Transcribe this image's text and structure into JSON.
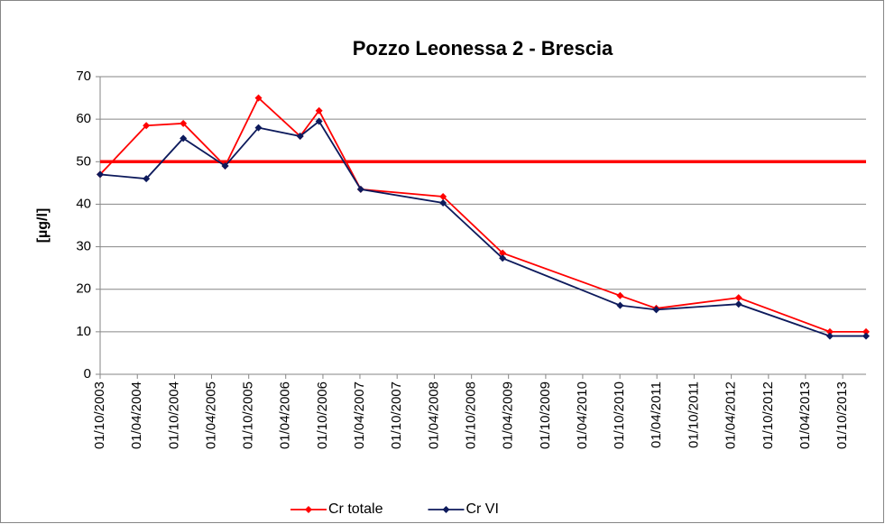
{
  "chart_data": {
    "type": "line",
    "title": "Pozzo Leonessa 2 - Brescia",
    "y_label": "[µg/l]",
    "x": [
      "2003-10-01",
      "2004-05-15",
      "2004-11-13",
      "2005-06-07",
      "2005-11-18",
      "2006-06-11",
      "2006-09-12",
      "2007-04-05",
      "2008-05-14",
      "2009-03-03",
      "2010-10-02",
      "2011-03-29",
      "2012-05-07",
      "2013-07-30",
      "2014-01-24"
    ],
    "series": [
      {
        "name": "Cr totale",
        "color": "#ff0000",
        "values": [
          47,
          58.5,
          59,
          49,
          65,
          56,
          62,
          43.5,
          41.8,
          28.5,
          18.5,
          15.5,
          18,
          10,
          10
        ]
      },
      {
        "name": "Cr VI",
        "color": "#0d1a5c",
        "values": [
          47,
          46,
          55.5,
          49,
          58,
          56,
          59.5,
          43.5,
          40.3,
          27.3,
          16.2,
          15.2,
          16.5,
          9,
          9
        ]
      }
    ],
    "reference_line": {
      "value": 50,
      "color": "#ff0000"
    },
    "xlim": [
      "2003-10-01",
      "2014-01-24"
    ],
    "xticks": [
      {
        "value": "2003-10-01",
        "label": "01/10/2003"
      },
      {
        "value": "2004-04-01",
        "label": "01/04/2004"
      },
      {
        "value": "2004-10-01",
        "label": "01/10/2004"
      },
      {
        "value": "2005-04-01",
        "label": "01/04/2005"
      },
      {
        "value": "2005-10-01",
        "label": "01/10/2005"
      },
      {
        "value": "2006-04-01",
        "label": "01/04/2006"
      },
      {
        "value": "2006-10-01",
        "label": "01/10/2006"
      },
      {
        "value": "2007-04-01",
        "label": "01/04/2007"
      },
      {
        "value": "2007-10-01",
        "label": "01/10/2007"
      },
      {
        "value": "2008-04-01",
        "label": "01/04/2008"
      },
      {
        "value": "2008-10-01",
        "label": "01/10/2008"
      },
      {
        "value": "2009-04-01",
        "label": "01/04/2009"
      },
      {
        "value": "2009-10-01",
        "label": "01/10/2009"
      },
      {
        "value": "2010-04-01",
        "label": "01/04/2010"
      },
      {
        "value": "2010-10-01",
        "label": "01/10/2010"
      },
      {
        "value": "2011-04-01",
        "label": "01/04/2011"
      },
      {
        "value": "2011-10-01",
        "label": "01/10/2011"
      },
      {
        "value": "2012-04-01",
        "label": "01/04/2012"
      },
      {
        "value": "2012-10-01",
        "label": "01/10/2012"
      },
      {
        "value": "2013-04-01",
        "label": "01/04/2013"
      },
      {
        "value": "2013-10-01",
        "label": "01/10/2013"
      }
    ],
    "ylim": [
      0,
      70
    ],
    "yticks": [
      0,
      10,
      20,
      30,
      40,
      50,
      60,
      70
    ],
    "grid": true,
    "legend": "bottom"
  }
}
